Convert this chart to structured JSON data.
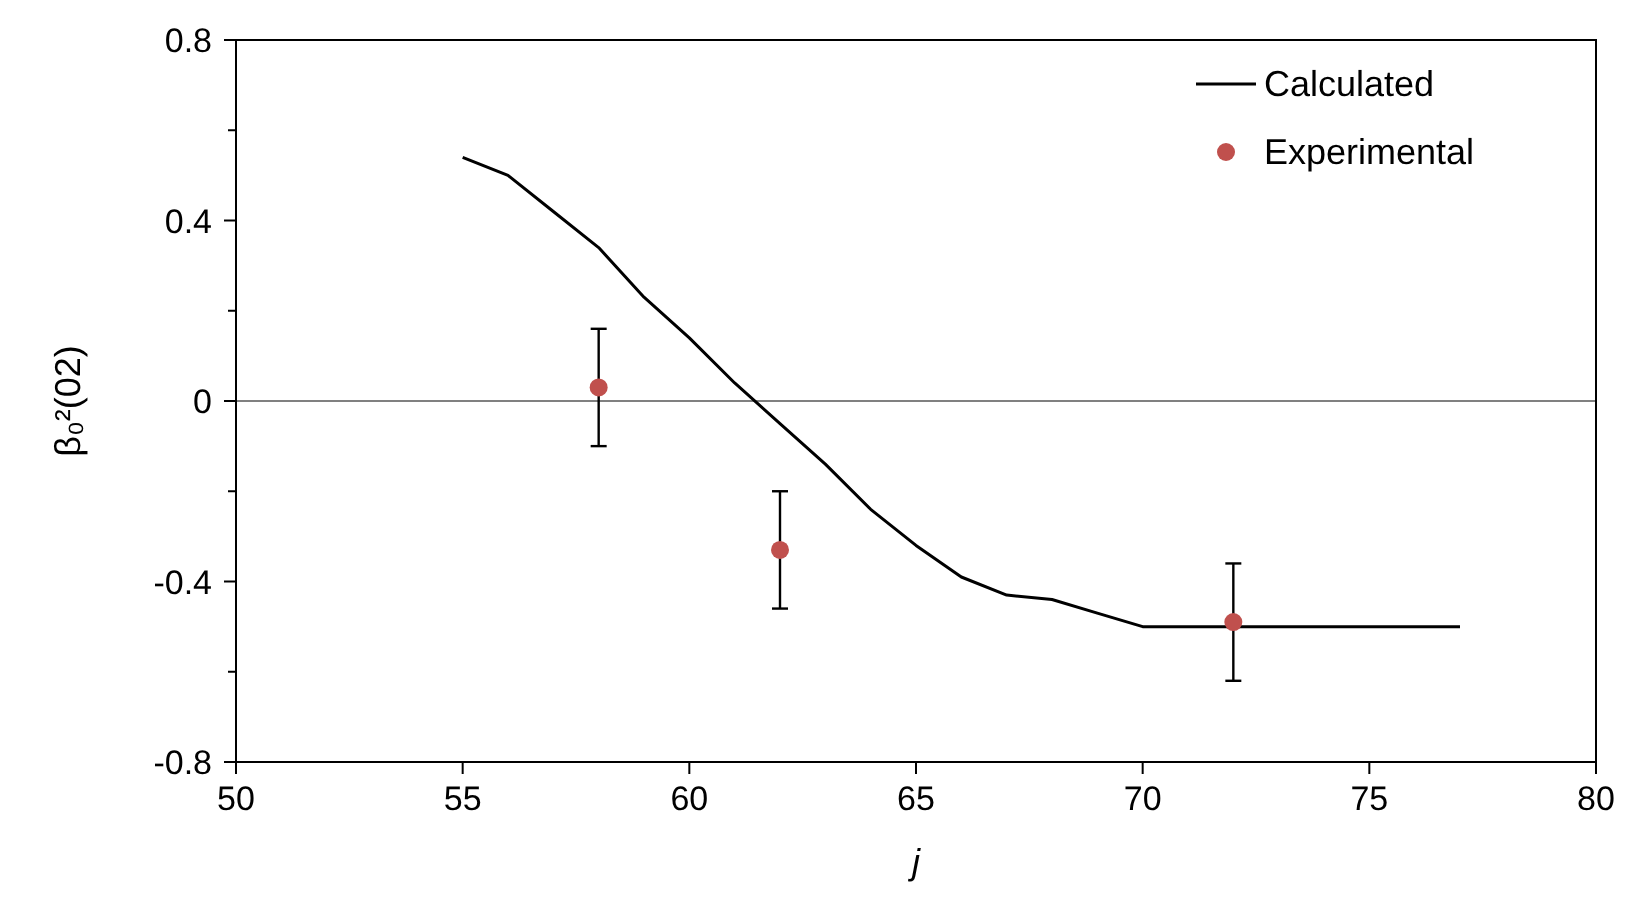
{
  "chart_data": {
    "type": "line",
    "xlabel": "j",
    "ylabel": "β₀²(02)",
    "xlim": [
      50,
      80
    ],
    "xticks": [
      50,
      55,
      60,
      65,
      70,
      75,
      80
    ],
    "ylim": [
      -0.8,
      0.8
    ],
    "yticks": [
      -0.8,
      {
        "value": -0.6,
        "label": null
      },
      -0.4,
      {
        "value": -0.2,
        "label": null
      },
      0,
      {
        "value": 0.2,
        "label": null
      },
      0.4,
      {
        "value": 0.6,
        "label": null
      },
      0.8
    ],
    "grid": false,
    "legend": "top right",
    "ref_lines": [
      {
        "axis": "y",
        "value": 0,
        "color": "#808080"
      }
    ],
    "series": [
      {
        "name": "Calculated",
        "color": "#000000",
        "marker": "none",
        "line_style": "solid",
        "x": [
          55,
          56,
          57,
          58,
          59,
          60,
          61,
          62,
          63,
          64,
          65,
          66,
          67,
          68,
          69,
          70,
          77
        ],
        "values": [
          0.54,
          0.5,
          0.42,
          0.34,
          0.23,
          0.14,
          0.04,
          -0.05,
          -0.14,
          -0.24,
          -0.32,
          -0.39,
          -0.43,
          -0.44,
          -0.47,
          -0.5,
          -0.5
        ]
      },
      {
        "name": "Experimental",
        "type": "scatter",
        "color": "#c0504d",
        "marker": "circle",
        "x": [
          58,
          62,
          72
        ],
        "values": [
          0.03,
          -0.33,
          -0.49
        ],
        "errors": [
          0.13,
          0.13,
          0.13
        ]
      }
    ]
  }
}
